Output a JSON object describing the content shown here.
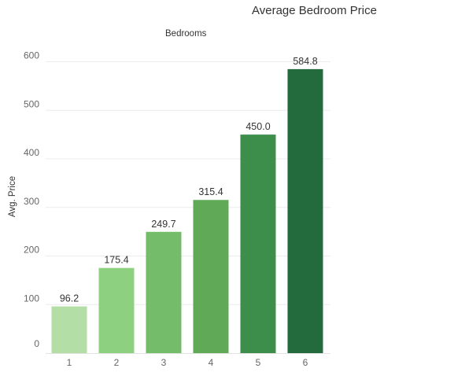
{
  "chart_data": {
    "type": "bar",
    "title": "Average Bedroom Price",
    "x_header": "Bedrooms",
    "xlabel": "",
    "ylabel": "Avg. Price",
    "categories": [
      "1",
      "2",
      "3",
      "4",
      "5",
      "6"
    ],
    "values": [
      96.2,
      175.4,
      249.7,
      315.4,
      450.0,
      584.8
    ],
    "value_labels": [
      "96.2",
      "175.4",
      "249.7",
      "315.4",
      "450.0",
      "584.8"
    ],
    "bar_colors": [
      "#b3dfa6",
      "#8dd07f",
      "#74bc6a",
      "#5fa957",
      "#3d8e4a",
      "#236b3c"
    ],
    "ylim": [
      0,
      640
    ],
    "yticks": [
      0,
      100,
      200,
      300,
      400,
      500,
      600
    ],
    "grid": true,
    "legend": "none"
  }
}
